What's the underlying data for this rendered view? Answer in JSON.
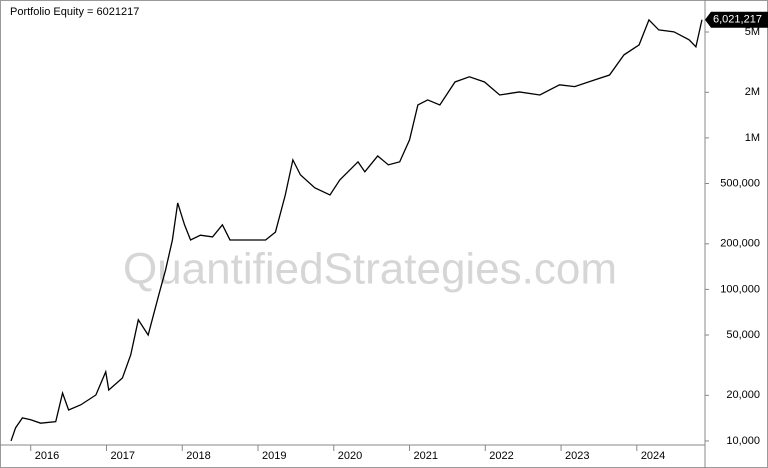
{
  "chart_data": {
    "type": "line",
    "title": "Portfolio Equity = 6021217",
    "watermark": "QuantifiedStrategies.com",
    "log_y": true,
    "color": "#000000",
    "xlim": [
      2015.7,
      2024.9
    ],
    "xticks": [
      2016,
      2017,
      2018,
      2019,
      2020,
      2021,
      2022,
      2023,
      2024
    ],
    "ylim": [
      9400,
      7200000
    ],
    "yticks": [
      {
        "value": 10000,
        "label": "10,000"
      },
      {
        "value": 20000,
        "label": "20,000"
      },
      {
        "value": 50000,
        "label": "50,000"
      },
      {
        "value": 100000,
        "label": "100,000"
      },
      {
        "value": 200000,
        "label": "200,000"
      },
      {
        "value": 500000,
        "label": "500,000"
      },
      {
        "value": 1000000,
        "label": "1M"
      },
      {
        "value": 2000000,
        "label": "2M"
      },
      {
        "value": 5000000,
        "label": "5M"
      }
    ],
    "x": [
      2015.74,
      2015.8,
      2015.89,
      2016.0,
      2016.13,
      2016.33,
      2016.42,
      2016.5,
      2016.66,
      2016.86,
      2016.99,
      2017.03,
      2017.21,
      2017.32,
      2017.42,
      2017.55,
      2017.69,
      2017.78,
      2017.87,
      2017.94,
      2018.03,
      2018.11,
      2018.24,
      2018.4,
      2018.53,
      2018.63,
      2018.83,
      2019.1,
      2019.23,
      2019.36,
      2019.46,
      2019.56,
      2019.75,
      2019.95,
      2020.08,
      2020.32,
      2020.41,
      2020.58,
      2020.72,
      2020.87,
      2021.0,
      2021.11,
      2021.24,
      2021.4,
      2021.6,
      2021.79,
      2021.99,
      2022.19,
      2022.45,
      2022.72,
      2022.98,
      2023.18,
      2023.44,
      2023.64,
      2023.83,
      2024.03,
      2024.16,
      2024.29,
      2024.49,
      2024.69,
      2024.78,
      2024.86
    ],
    "values": [
      10000,
      12200,
      14200,
      13800,
      13100,
      13400,
      20700,
      16000,
      17300,
      20100,
      28600,
      21700,
      26000,
      37000,
      63000,
      50000,
      92000,
      134500,
      212000,
      372000,
      267000,
      212000,
      228000,
      222000,
      267000,
      212000,
      212000,
      212000,
      239000,
      420000,
      716000,
      570000,
      468000,
      420000,
      528000,
      695000,
      597000,
      760000,
      664000,
      695000,
      970000,
      1650000,
      1780000,
      1650000,
      2340000,
      2530000,
      2340000,
      1920000,
      2010000,
      1920000,
      2240000,
      2180000,
      2410000,
      2600000,
      3530000,
      4110000,
      6010000,
      5160000,
      5010000,
      4440000,
      3990000,
      6021217
    ],
    "value_labels": [
      null,
      null,
      null,
      null,
      null,
      null,
      null,
      null,
      null,
      null,
      null,
      null,
      null,
      null,
      null,
      null,
      null,
      null,
      null,
      null,
      null,
      null,
      null,
      null,
      null,
      null,
      null,
      null,
      null,
      null,
      null,
      null,
      null,
      null,
      null,
      null,
      null,
      null,
      null,
      null,
      null,
      null,
      null,
      null,
      null,
      null,
      null,
      null,
      null,
      null,
      null,
      null,
      null,
      null,
      null,
      null,
      null,
      null,
      null,
      null,
      null,
      "6,021,217"
    ]
  }
}
